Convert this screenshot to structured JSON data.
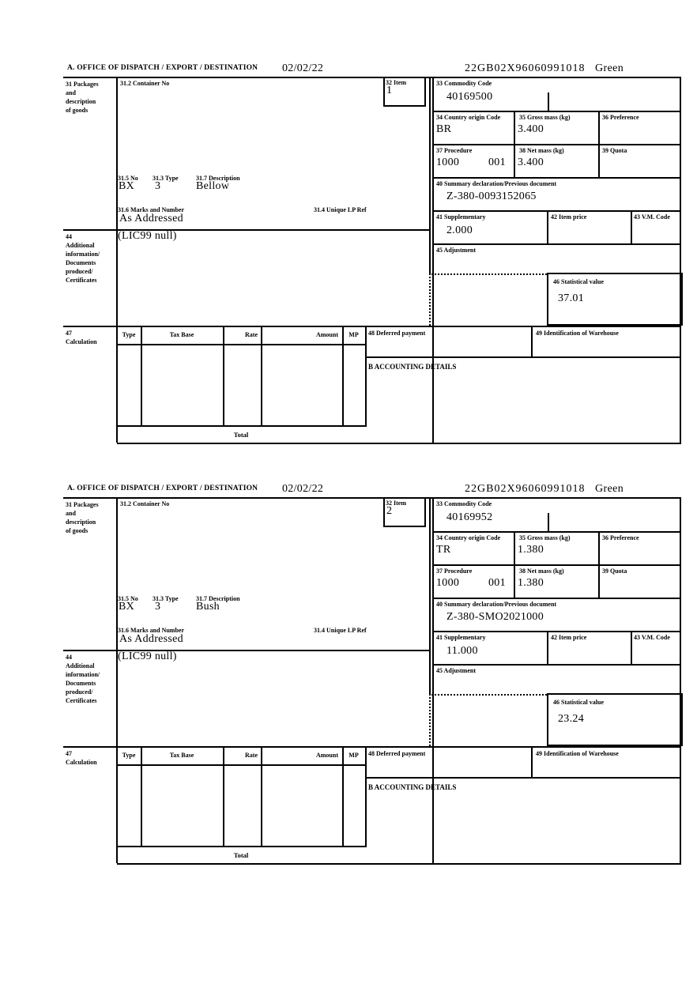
{
  "header": {
    "section_a_label": "A.  OFFICE OF DISPATCH / EXPORT / DESTINATION",
    "date": "02/02/22",
    "mrn": "22GB02X96060991018",
    "routing": "Green"
  },
  "labels": {
    "box31": "31 Packages\nand\ndescription\nof goods",
    "box31_2": "31.2 Container No",
    "box32": "32 Item",
    "box33": "33 Commodity Code",
    "box34": "34 Country origin Code",
    "box35": "35 Gross mass (kg)",
    "box36": "36 Preference",
    "box37": "37 Procedure",
    "box38": "38 Net mass (kg)",
    "box39": "39 Quota",
    "box31_5": "31.5 No",
    "box31_3": "31.3 Type",
    "box31_7": "31.7 Description",
    "box31_6": "31.6 Marks and Number",
    "box31_4": "31.4 Unique LP Ref",
    "box40": "40 Summary declaration/Previous document",
    "box41": "41 Supplementary",
    "box42": "42 Item price",
    "box43": "43 V.M. Code",
    "box44": "44\nAdditional\ninformation/\nDocuments\nproduced/\nCertificates",
    "box45": "45 Adjustment",
    "box46": "46 Statistical value",
    "box47": "47\nCalculation",
    "box48": "48 Deferred payment",
    "box49": "49 Identification of Warehouse",
    "accounting": "B ACCOUNTING DETAILS",
    "total": "Total",
    "calc_type": "Type",
    "calc_tax_base": "Tax Base",
    "calc_rate": "Rate",
    "calc_amount": "Amount",
    "calc_mp": "MP"
  },
  "sections": [
    {
      "item_number": "1",
      "commodity_code": "40169500",
      "country_origin_code": "BR",
      "gross_mass_kg": "3.400",
      "procedure": "1000",
      "procedure_extra": "001",
      "net_mass_kg": "3.400",
      "packages_no": "BX",
      "packages_type": "3",
      "goods_description": "Bellow",
      "marks_and_number": "As Addressed",
      "summary_declaration": "Z-380-0093152065",
      "supplementary_units": "2.000",
      "statistical_value": "37.01",
      "additional_information": "(LIC99 null)"
    },
    {
      "item_number": "2",
      "commodity_code": "40169952",
      "country_origin_code": "TR",
      "gross_mass_kg": "1.380",
      "procedure": "1000",
      "procedure_extra": "001",
      "net_mass_kg": "1.380",
      "packages_no": "BX",
      "packages_type": "3",
      "goods_description": "Bush",
      "marks_and_number": "As Addressed",
      "summary_declaration": "Z-380-SMO2021000",
      "supplementary_units": "11.000",
      "statistical_value": "23.24",
      "additional_information": "(LIC99 null)"
    }
  ]
}
